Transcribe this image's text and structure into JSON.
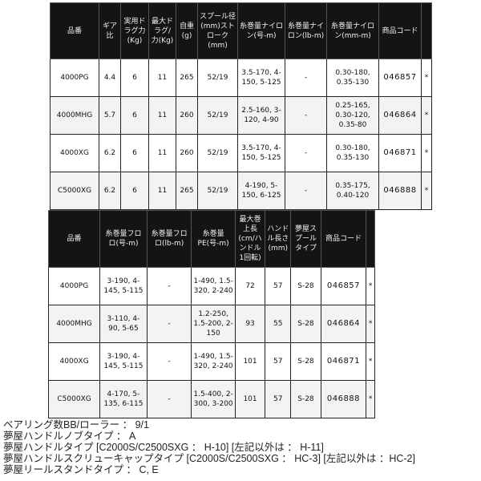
{
  "table1": {
    "headers": [
      "品番",
      "ギア比",
      "実用ドラグ力(Kg)",
      "最大ドラグ/力(Kg)",
      "自重(g)",
      "スプール径(mm)ストローク(mm)",
      "糸巻量ナイロン(号-m)",
      "糸巻量ナイロン(lb-m)",
      "糸巻量ナイロン(mm-m)",
      "商品コード",
      ""
    ],
    "rows": [
      [
        "4000PG",
        "4.4",
        "6",
        "11",
        "265",
        "52/19",
        "3.5-170, 4-150, 5-125",
        "-",
        "0.30-180, 0.35-130",
        "046857",
        "*"
      ],
      [
        "4000MHG",
        "5.7",
        "6",
        "11",
        "260",
        "52/19",
        "2.5-160, 3-120, 4-90",
        "-",
        "0.25-165, 0.30-120, 0.35-80",
        "046864",
        "*"
      ],
      [
        "4000XG",
        "6.2",
        "6",
        "11",
        "260",
        "52/19",
        "3.5-170, 4-150, 5-125",
        "-",
        "0.30-180, 0.35-130",
        "046871",
        "*"
      ],
      [
        "C5000XG",
        "6.2",
        "6",
        "11",
        "265",
        "52/19",
        "4-190, 5-150, 6-125",
        "-",
        "0.35-175, 0.40-120",
        "046888",
        "*"
      ]
    ]
  },
  "table2": {
    "headers": [
      "品番",
      "糸巻量フロロ(号-m)",
      "糸巻量フロロ(lb-m)",
      "糸巻量PE(号-m)",
      "最大巻上長(cm/ハンドル1回転)",
      "ハンドル長さ(mm)",
      "夢屋スプールタイプ",
      "商品コード",
      ""
    ],
    "rows": [
      [
        "4000PG",
        "3-190, 4-145, 5-115",
        "-",
        "1-490, 1.5-320, 2-240",
        "72",
        "57",
        "S-28",
        "046857",
        "*"
      ],
      [
        "4000MHG",
        "3-110, 4-90, 5-65",
        "-",
        "1.2-250, 1.5-200, 2-150",
        "93",
        "55",
        "S-28",
        "046864",
        "*"
      ],
      [
        "4000XG",
        "3-190, 4-145, 5-115",
        "-",
        "1-490, 1.5-320, 2-240",
        "101",
        "57",
        "S-28",
        "046871",
        "*"
      ],
      [
        "C5000XG",
        "4-170, 5-135, 6-115",
        "-",
        "1.5-400, 2-300, 3-200",
        "101",
        "57",
        "S-28",
        "046888",
        "*"
      ]
    ]
  },
  "notes": [
    "ベアリング数BB/ローラー ： 9/1",
    "夢屋ハンドルノブタイプ ： A",
    "夢屋ハンドルタイプ [C2000S/C2500SXG ： H-10] [左記以外は ： H-11]",
    "夢屋ハンドルスクリューキャップタイプ [C2000S/C2500SXG ： HC-3] [左記以外は ：HC-2]",
    "夢屋リールスタンドタイプ ： C, E"
  ]
}
